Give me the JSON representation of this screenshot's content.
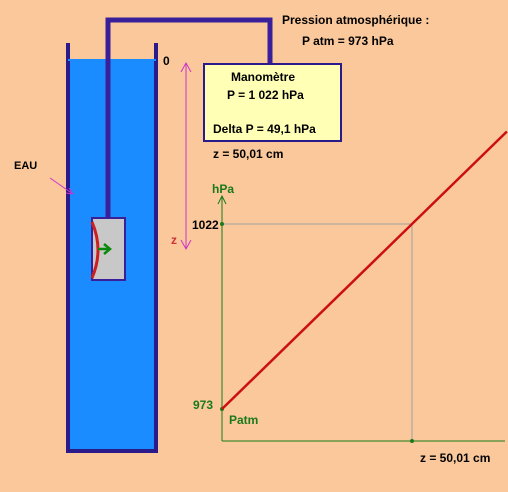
{
  "diagram": {
    "atm_label": "Pression atmosphérique :",
    "atm_value": "P atm =  973  hPa",
    "zero_mark": "0",
    "water_label": "EAU",
    "depth_symbol": "z",
    "depth_readout": "z = 50,01 cm",
    "manometer": {
      "title": "Manomètre",
      "pressure": "P =  1 022  hPa",
      "delta": "Delta P = 49,1  hPa"
    },
    "colors": {
      "water": "#1A8CFF",
      "water_outline": "#2B1B8A",
      "tube": "#3A1F9A",
      "curve": "#CC1010",
      "axis": "#1A7A1A",
      "depth_arrow": "#CC33CC"
    }
  },
  "chart_data": {
    "type": "line",
    "ylabel": "hPa",
    "x_tick_label": "z = 50,01 cm",
    "y_ticks": [
      "1022",
      "973"
    ],
    "origin_label": "Patm",
    "series": [
      {
        "x": [
          0,
          50.01,
          75
        ],
        "y": [
          973,
          1022,
          1046.5
        ]
      }
    ],
    "marker": {
      "x": 50.01,
      "y": 1022
    }
  }
}
